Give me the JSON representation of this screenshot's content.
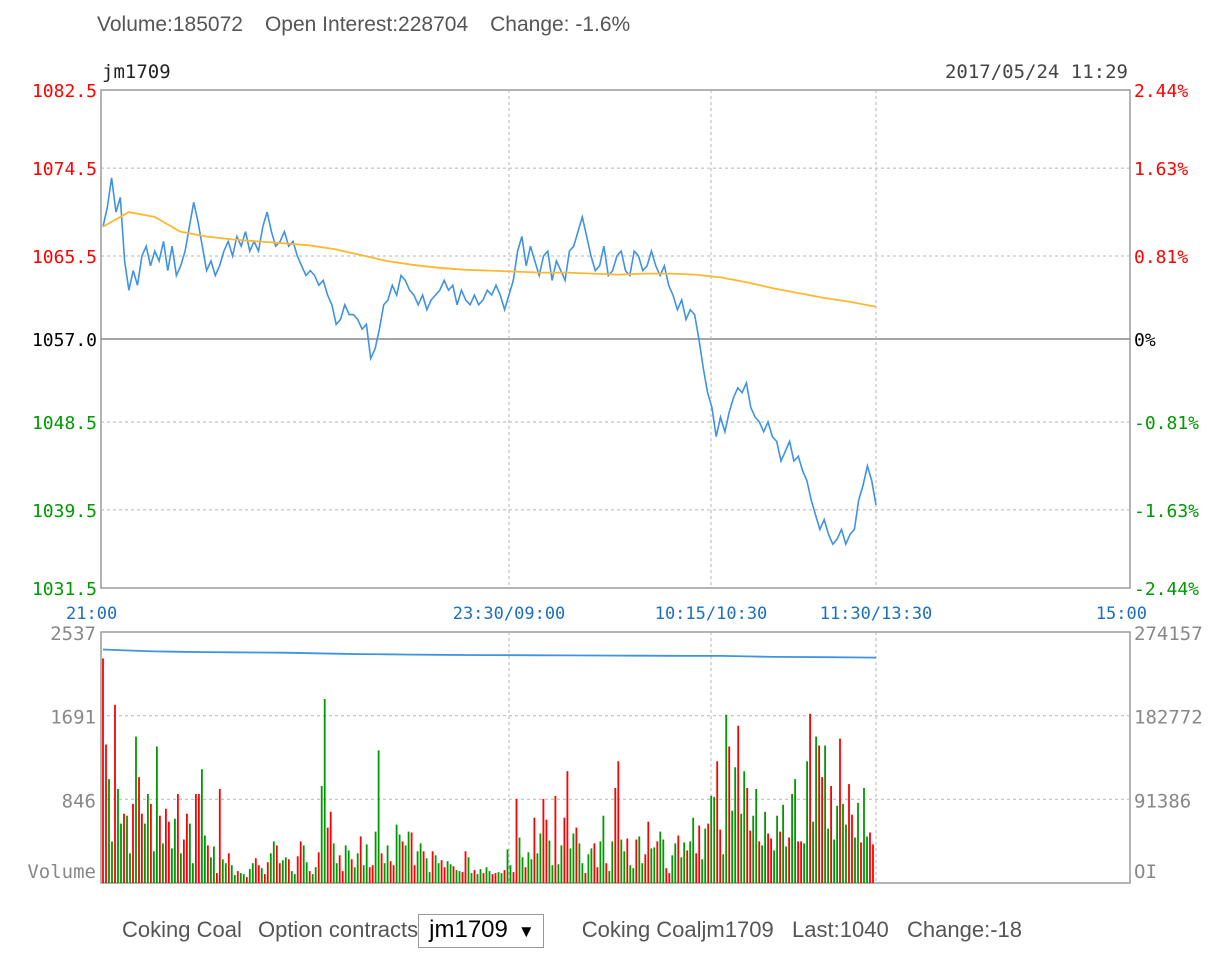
{
  "header": {
    "volume_text": "Volume:185072",
    "oi_text": "Open Interest:228704",
    "change_text": "Change: -1.6%"
  },
  "chart_data": [
    {
      "type": "line",
      "title": "jm1709",
      "timestamp": "2017/05/24 11:29",
      "x_ticks": [
        "21:00",
        "23:30/09:00",
        "10:15/10:30",
        "11:30/13:30",
        "15:00"
      ],
      "y_ticks": [
        "1082.5",
        "1074.5",
        "1065.5",
        "1057.0",
        "1048.5",
        "1039.5",
        "1031.5"
      ],
      "y_ticks_right": [
        "2.44%",
        "1.63%",
        "0.81%",
        "0%",
        "-0.81%",
        "-1.63%",
        "-2.44%"
      ],
      "ylim": [
        1031.5,
        1082.5
      ],
      "reference_price": 1057.0,
      "colors": {
        "up": "#ff0000",
        "down": "#009900",
        "flat": "#000000",
        "price_line": "#3f93e0",
        "avg_line": "#ffb732",
        "axis_time": "#1c6fbf"
      },
      "series": [
        {
          "name": "price",
          "values": [
            1068.5,
            1070.5,
            1073.5,
            1070.0,
            1071.5,
            1065.0,
            1062.0,
            1064.0,
            1062.5,
            1065.5,
            1066.5,
            1064.5,
            1066.0,
            1065.0,
            1067.0,
            1064.0,
            1066.5,
            1063.5,
            1064.5,
            1066.0,
            1068.5,
            1071.0,
            1069.0,
            1066.5,
            1064.0,
            1065.0,
            1063.5,
            1064.5,
            1066.0,
            1067.0,
            1065.5,
            1067.5,
            1066.5,
            1068.0,
            1066.0,
            1067.0,
            1066.0,
            1068.5,
            1070.0,
            1068.0,
            1066.5,
            1067.0,
            1068.0,
            1066.5,
            1067.0,
            1065.5,
            1064.5,
            1063.5,
            1064.0,
            1063.5,
            1062.5,
            1063.0,
            1061.5,
            1060.5,
            1058.5,
            1059.0,
            1060.5,
            1059.5,
            1059.5,
            1059.0,
            1058.0,
            1058.5,
            1055.0,
            1056.0,
            1058.0,
            1060.5,
            1061.0,
            1062.5,
            1061.5,
            1063.5,
            1063.0,
            1062.0,
            1061.5,
            1060.5,
            1061.5,
            1060.0,
            1061.0,
            1061.5,
            1062.0,
            1063.0,
            1062.0,
            1062.5,
            1060.5,
            1062.0,
            1061.0,
            1060.5,
            1061.5,
            1060.5,
            1061.0,
            1062.0,
            1061.5,
            1062.5,
            1061.5,
            1060.0,
            1061.5,
            1063.0,
            1066.0,
            1067.5,
            1064.5,
            1066.5,
            1065.0,
            1063.5,
            1065.5,
            1066.0,
            1063.0,
            1065.0,
            1064.0,
            1063.0,
            1066.0,
            1066.5,
            1068.0,
            1069.5,
            1067.5,
            1065.5,
            1064.0,
            1064.5,
            1066.5,
            1063.5,
            1064.0,
            1065.5,
            1066.0,
            1064.0,
            1063.5,
            1066.0,
            1065.5,
            1064.0,
            1064.5,
            1066.0,
            1064.5,
            1063.5,
            1064.5,
            1062.5,
            1061.5,
            1060.0,
            1061.0,
            1059.0,
            1060.0,
            1059.5,
            1057.0,
            1054.0,
            1051.5,
            1050.0,
            1047.0,
            1049.0,
            1047.5,
            1049.5,
            1051.0,
            1052.0,
            1051.5,
            1052.5,
            1050.0,
            1049.0,
            1048.5,
            1047.5,
            1048.5,
            1047.0,
            1046.5,
            1044.5,
            1045.5,
            1046.5,
            1044.5,
            1045.0,
            1043.5,
            1042.5,
            1040.5,
            1039.0,
            1037.5,
            1038.5,
            1037.0,
            1036.0,
            1036.5,
            1037.5,
            1036.0,
            1037.0,
            1037.5,
            1040.5,
            1042.0,
            1044.0,
            1042.5,
            1040.0
          ]
        },
        {
          "name": "average",
          "values": [
            1068.5,
            1070.0,
            1069.5,
            1068.0,
            1067.5,
            1067.2,
            1067.0,
            1066.8,
            1066.6,
            1066.2,
            1065.6,
            1065.0,
            1064.6,
            1064.3,
            1064.1,
            1064.0,
            1063.9,
            1063.8,
            1063.8,
            1063.7,
            1063.6,
            1063.7,
            1063.7,
            1063.6,
            1063.3,
            1062.8,
            1062.2,
            1061.7,
            1061.2,
            1060.8,
            1060.3
          ]
        }
      ]
    },
    {
      "type": "bar",
      "title": "",
      "y_ticks": [
        "2537",
        "1691",
        "846"
      ],
      "ylabel": "Volume",
      "y_ticks_right": [
        "274157",
        "182772",
        "91386"
      ],
      "ylabel_right": "OI",
      "ylim": [
        0,
        2537
      ],
      "oi_range": [
        0,
        274157
      ],
      "oi_values": [
        255000,
        254000,
        253000,
        252500,
        252200,
        252000,
        251800,
        251500,
        251000,
        250500,
        250000,
        249800,
        249500,
        249300,
        249000,
        248900,
        248800,
        248700,
        248600,
        248500,
        248400,
        248300,
        248200,
        248100,
        248000,
        247500,
        247000,
        246800,
        246600,
        246400,
        246200
      ],
      "values": [
        2270,
        1400,
        1050,
        420,
        1800,
        950,
        600,
        700,
        680,
        300,
        800,
        1480,
        1070,
        700,
        600,
        900,
        800,
        320,
        1380,
        680,
        400,
        750,
        620,
        350,
        650,
        900,
        300,
        440,
        700,
        600,
        200,
        900,
        900,
        1150,
        480,
        380,
        260,
        370,
        100,
        950,
        240,
        200,
        300,
        180,
        80,
        120,
        100,
        90,
        60,
        140,
        200,
        250,
        180,
        150,
        90,
        210,
        300,
        420,
        380,
        200,
        230,
        260,
        240,
        120,
        90,
        270,
        420,
        380,
        210,
        120,
        90,
        160,
        310,
        980,
        1860,
        560,
        720,
        400,
        200,
        280,
        120,
        380,
        330,
        240,
        160,
        300,
        470,
        180,
        390,
        160,
        180,
        520,
        1340,
        300,
        200,
        380,
        220,
        180,
        590,
        490,
        420,
        380,
        520,
        510,
        180,
        320,
        400,
        320,
        250,
        110,
        320,
        280,
        200,
        230,
        160,
        220,
        190,
        170,
        130,
        120,
        110,
        320,
        260,
        100,
        130,
        90,
        140,
        100,
        160,
        120,
        90,
        100,
        110,
        100,
        130,
        340,
        180,
        110,
        850,
        460,
        260,
        160,
        310,
        240,
        660,
        300,
        500,
        850,
        640,
        430,
        180,
        880,
        190,
        380,
        660,
        1130,
        350,
        500,
        560,
        400,
        200,
        100,
        290,
        350,
        400,
        160,
        420,
        680,
        200,
        120,
        420,
        960,
        1230,
        440,
        320,
        450,
        180,
        150,
        440,
        470,
        200,
        290,
        620,
        350,
        360,
        420,
        520,
        440,
        150,
        100,
        280,
        400,
        480,
        260,
        410,
        330,
        420,
        660,
        300,
        580,
        240,
        550,
        600,
        880,
        870,
        1230,
        540,
        290,
        1700,
        1380,
        730,
        1170,
        1590,
        700,
        1130,
        960,
        530,
        680,
        950,
        420,
        380,
        720,
        500,
        450,
        330,
        680,
        520,
        790,
        370,
        460,
        900,
        1050,
        420,
        420,
        400,
        1230,
        1710,
        620,
        1480,
        1390,
        1070,
        1390,
        550,
        980,
        440,
        780,
        1460,
        800,
        590,
        1000,
        690,
        460,
        810,
        410,
        960,
        470,
        510,
        390
      ],
      "directions": "uudduddudduduuddudduduudduduudduuddudduuddudduddudduuduudduuddudduudduddudduudduudduddudduuddudduuddudduudduddudduuddudduudduddudduuddudduudduddudduuddudduudduddudduuddudduudduddudduuddudduudduddudduuddudduudduddudduuddudduudduddudduuddudduudduddudduuddudduudduddudduudd"
    }
  ],
  "footer": {
    "commodity_label": "Coking Coal",
    "options_label": "Option contracts",
    "selected_contract": "jm1709",
    "dropdown_icon": "triangle-down-icon",
    "summary_name": "Coking Coaljm1709",
    "last_text": "Last:1040",
    "change_text": "Change:-18"
  }
}
